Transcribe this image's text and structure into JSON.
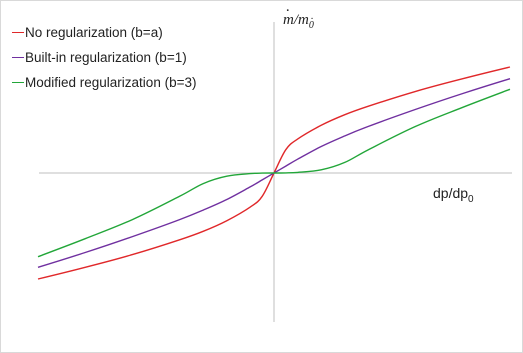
{
  "chart_data": {
    "type": "line",
    "title": "",
    "xlabel": "dp/dp",
    "xlabel_sub": "0",
    "ylabel": "m/m",
    "ylabel_sub": "0",
    "axes": "centered crosshair, no ticks, no grid",
    "legend_placement": "top-left",
    "x": [
      -1.0,
      -0.8,
      -0.6,
      -0.4,
      -0.3,
      -0.2,
      -0.1,
      -0.05,
      0.0,
      0.05,
      0.1,
      0.2,
      0.3,
      0.4,
      0.6,
      0.8,
      1.0
    ],
    "series": [
      {
        "name": "No regularization (b=a)",
        "color": "#e0282a",
        "values": [
          -1.0,
          -0.89,
          -0.77,
          -0.63,
          -0.55,
          -0.45,
          -0.32,
          -0.22,
          0.0,
          0.22,
          0.32,
          0.45,
          0.55,
          0.63,
          0.77,
          0.89,
          1.0
        ]
      },
      {
        "name": "Built-in regularization (b=1)",
        "color": "#7030a0",
        "values": [
          -0.89,
          -0.75,
          -0.6,
          -0.44,
          -0.35,
          -0.25,
          -0.13,
          -0.065,
          0.0,
          0.065,
          0.13,
          0.25,
          0.35,
          0.44,
          0.6,
          0.75,
          0.89
        ]
      },
      {
        "name": "Modified regularization (b=3)",
        "color": "#22a639",
        "values": [
          -0.79,
          -0.62,
          -0.44,
          -0.22,
          -0.1,
          -0.03,
          -0.006,
          -0.001,
          0.0,
          0.001,
          0.006,
          0.03,
          0.1,
          0.22,
          0.44,
          0.62,
          0.79
        ]
      }
    ]
  }
}
